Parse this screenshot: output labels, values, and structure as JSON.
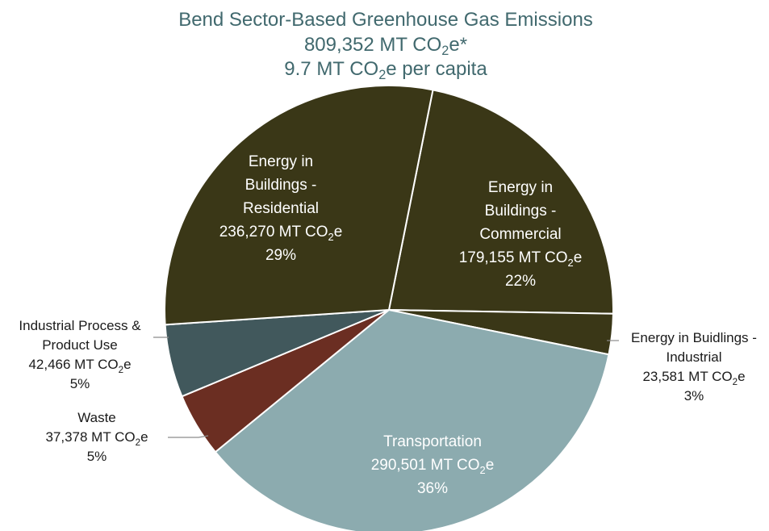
{
  "chart_data": {
    "type": "pie",
    "title": [
      "Bend Sector-Based Greenhouse Gas Emissions",
      "809,352 MT CO2e*",
      "9.7 MT CO2e per capita"
    ],
    "slices": [
      {
        "label": [
          "Energy in",
          "Buildings -",
          "Commercial"
        ],
        "value": 179155,
        "value_text": "179,155 MT CO2e",
        "percent": "22%",
        "color": "#3A3717",
        "label_pos": "inside"
      },
      {
        "label": [
          "Energy in Buidlings -",
          "Industrial"
        ],
        "value": 23581,
        "value_text": "23,581 MT CO2e",
        "percent": "3%",
        "color": "#3A3717",
        "label_pos": "outside-right"
      },
      {
        "label": [
          "Transportation"
        ],
        "value": 290501,
        "value_text": "290,501 MT CO2e",
        "percent": "36%",
        "color": "#8CABAF",
        "label_pos": "inside"
      },
      {
        "label": [
          "Waste"
        ],
        "value": 37378,
        "value_text": "37,378 MT CO2e",
        "percent": "5%",
        "color": "#6B2E22",
        "label_pos": "outside-left"
      },
      {
        "label": [
          "Industrial Process &",
          "Product Use"
        ],
        "value": 42466,
        "value_text": "42,466 MT CO2e",
        "percent": "5%",
        "color": "#41585C",
        "label_pos": "outside-left"
      },
      {
        "label": [
          "Energy in",
          "Buildings -",
          "Residential"
        ],
        "value": 236270,
        "value_text": "236,270 MT CO2e",
        "percent": "29%",
        "color": "#3A3717",
        "label_pos": "inside"
      }
    ]
  }
}
